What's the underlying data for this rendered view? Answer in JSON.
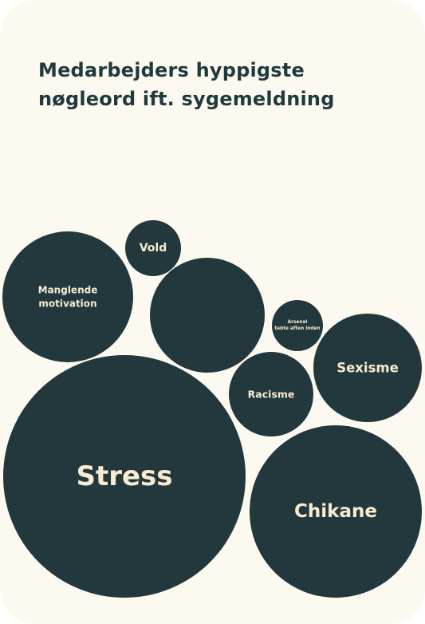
{
  "card": {
    "title_lines": [
      "Medarbejders hyppigste",
      "nøgleord ift. sygemeldning"
    ]
  },
  "colors": {
    "background": "#fcf9f0",
    "bubble_fill": "#22383c",
    "bubble_text": "#f7ecd2",
    "title_text": "#1f3a3d"
  },
  "chart_data": {
    "type": "bubble",
    "title": "Medarbejders hyppigste nøgleord ift. sygemeldning",
    "items": [
      {
        "label_lines": [
          "Stress"
        ]
      },
      {
        "label_lines": [
          "Chikane"
        ]
      },
      {
        "label_lines": [
          "Manglende",
          "motivation"
        ]
      },
      {
        "label_lines": []
      },
      {
        "label_lines": [
          "Sexisme"
        ]
      },
      {
        "label_lines": [
          "Racisme"
        ]
      },
      {
        "label_lines": [
          "Vold"
        ]
      },
      {
        "label_lines": [
          "Arsenal",
          "tabte aften inden"
        ]
      }
    ]
  }
}
